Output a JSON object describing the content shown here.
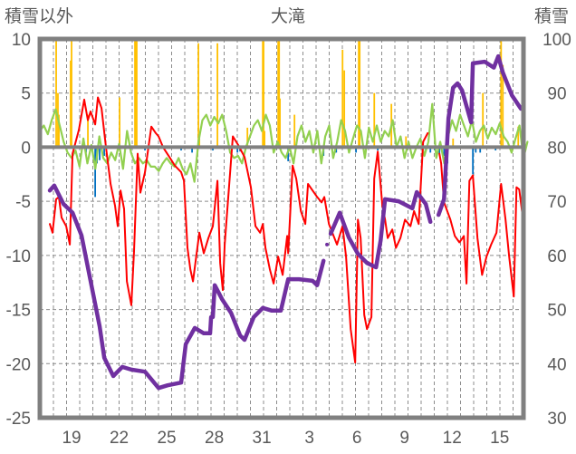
{
  "chart_data": {
    "type": "line",
    "title": "大滝",
    "ylabel_left": "積雪以外",
    "ylabel_right": "積雪",
    "x_unit": "days since the 17th (start of plot)",
    "xlim": [
      0,
      30.5
    ],
    "ylim_left": [
      -25,
      10
    ],
    "ylim_right": [
      30,
      100
    ],
    "yticks_left": [
      "10",
      "5",
      "0",
      "-5",
      "-10",
      "-15",
      "-20",
      "-25"
    ],
    "yticks_right": [
      "100",
      "90",
      "80",
      "70",
      "60",
      "50",
      "40",
      "30"
    ],
    "xticks": [
      {
        "x": 2,
        "label": "19"
      },
      {
        "x": 5,
        "label": "22"
      },
      {
        "x": 8,
        "label": "25"
      },
      {
        "x": 11,
        "label": "28"
      },
      {
        "x": 14,
        "label": "31"
      },
      {
        "x": 17,
        "label": "3"
      },
      {
        "x": 20,
        "label": "6"
      },
      {
        "x": 23,
        "label": "9"
      },
      {
        "x": 26,
        "label": "12"
      },
      {
        "x": 29,
        "label": "15"
      }
    ],
    "grid": true,
    "colors": {
      "red": "#FF0000",
      "green": "#92D050",
      "orange": "#FFC000",
      "blue": "#0070C0",
      "purple": "#7030A0",
      "frame": "#808080"
    },
    "series": [
      {
        "name": "red",
        "axis": "left",
        "color": "#FF0000",
        "points": [
          [
            0.63,
            -7.1
          ],
          [
            0.8,
            -7.9
          ],
          [
            1.03,
            -4.8
          ],
          [
            1.2,
            -4.6
          ],
          [
            1.37,
            -6.5
          ],
          [
            1.66,
            -7.3
          ],
          [
            1.89,
            -9.0
          ],
          [
            2.06,
            -0.6
          ],
          [
            2.46,
            1.6
          ],
          [
            2.8,
            4.4
          ],
          [
            3.03,
            2.5
          ],
          [
            3.2,
            3.3
          ],
          [
            3.49,
            2.1
          ],
          [
            3.66,
            4.6
          ],
          [
            3.89,
            3.6
          ],
          [
            4.17,
            0.0
          ],
          [
            4.46,
            -3.4
          ],
          [
            4.74,
            -5.4
          ],
          [
            4.91,
            -7.3
          ],
          [
            5.09,
            -4.0
          ],
          [
            5.31,
            -5.7
          ],
          [
            5.49,
            -12.4
          ],
          [
            5.77,
            -14.6
          ],
          [
            5.94,
            -9.6
          ],
          [
            6.17,
            -0.6
          ],
          [
            6.34,
            -4.2
          ],
          [
            6.63,
            -2.3
          ],
          [
            7.03,
            1.9
          ],
          [
            7.31,
            1.3
          ],
          [
            7.49,
            1.0
          ],
          [
            7.77,
            0.0
          ],
          [
            8.17,
            -0.9
          ],
          [
            8.51,
            -1.7
          ],
          [
            8.91,
            -2.3
          ],
          [
            9.09,
            -3.1
          ],
          [
            9.31,
            -9.3
          ],
          [
            9.49,
            -11.3
          ],
          [
            9.66,
            -12.4
          ],
          [
            10.06,
            -7.9
          ],
          [
            10.34,
            -9.8
          ],
          [
            10.63,
            -8.4
          ],
          [
            10.91,
            -7.3
          ],
          [
            11.2,
            -3.1
          ],
          [
            11.37,
            -10.7
          ],
          [
            11.54,
            -13.2
          ],
          [
            11.66,
            -9.0
          ],
          [
            12.17,
            1.0
          ],
          [
            12.51,
            0.2
          ],
          [
            12.91,
            -0.9
          ],
          [
            13.31,
            -3.7
          ],
          [
            13.6,
            -7.3
          ],
          [
            13.89,
            -7.9
          ],
          [
            14.06,
            -7.1
          ],
          [
            14.23,
            -9.3
          ],
          [
            14.51,
            -11.3
          ],
          [
            14.74,
            -12.6
          ],
          [
            15.03,
            -10.1
          ],
          [
            15.31,
            -11.8
          ],
          [
            15.6,
            -8.2
          ],
          [
            15.66,
            -9.8
          ],
          [
            15.94,
            -1.7
          ],
          [
            16.17,
            -2.9
          ],
          [
            16.46,
            -5.9
          ],
          [
            16.74,
            -7.1
          ],
          [
            16.91,
            -3.4
          ],
          [
            17.49,
            -4.6
          ],
          [
            17.77,
            -5.1
          ],
          [
            17.94,
            -4.6
          ],
          [
            18.23,
            -7.1
          ],
          [
            18.74,
            -9.0
          ],
          [
            19.09,
            -7.3
          ],
          [
            19.31,
            -10.1
          ],
          [
            19.6,
            -16.8
          ],
          [
            19.89,
            -19.9
          ],
          [
            20.06,
            -6.7
          ],
          [
            20.23,
            -8.4
          ],
          [
            20.46,
            -15.5
          ],
          [
            20.63,
            -16.8
          ],
          [
            20.91,
            -15.7
          ],
          [
            21.09,
            -2.9
          ],
          [
            21.31,
            -0.4
          ],
          [
            21.6,
            -5.4
          ],
          [
            21.77,
            -6.7
          ],
          [
            21.94,
            -8.4
          ],
          [
            22.23,
            -7.6
          ],
          [
            22.46,
            -9.3
          ],
          [
            22.74,
            -8.4
          ],
          [
            23.03,
            -6.7
          ],
          [
            23.37,
            -7.3
          ],
          [
            23.6,
            -5.9
          ],
          [
            23.89,
            -7.1
          ],
          [
            24.17,
            0.5
          ],
          [
            24.46,
            1.3
          ],
          null,
          [
            25.2,
            -0.6
          ],
          [
            25.31,
            -1.5
          ],
          [
            25.49,
            -5.1
          ],
          [
            25.89,
            -6.7
          ],
          [
            26.17,
            -8.2
          ],
          [
            26.46,
            -8.8
          ],
          [
            26.74,
            -8.2
          ],
          [
            26.91,
            -12.6
          ],
          [
            27.09,
            -3.1
          ],
          [
            27.31,
            -2.6
          ],
          [
            27.6,
            -8.4
          ],
          [
            27.89,
            -11.8
          ],
          [
            28.17,
            -10.1
          ],
          [
            28.46,
            -9.0
          ],
          [
            28.8,
            -7.9
          ],
          [
            29.09,
            -3.4
          ],
          [
            29.37,
            -6.7
          ],
          [
            29.6,
            -10.1
          ],
          [
            29.89,
            -13.8
          ],
          [
            30.06,
            -3.7
          ],
          [
            30.23,
            -3.9
          ],
          [
            30.51,
            -7.1
          ]
        ]
      },
      {
        "name": "green",
        "axis": "left",
        "color": "#92D050",
        "x_start": 0,
        "x_step": 0.25,
        "values": [
          1.5,
          2.0,
          1.2,
          2.5,
          3.5,
          2.0,
          0.5,
          -0.5,
          -1.0,
          -0.3,
          -1.8,
          0.8,
          -1.5,
          0.2,
          -2.0,
          1.0,
          -1.0,
          -1.5,
          -0.5,
          -1.2,
          0.3,
          -2.0,
          1.5,
          -0.5,
          -1.5,
          -1.0,
          -1.5,
          -1.2,
          -1.8,
          -1.8,
          -2.2,
          -1.5,
          -1.0,
          -1.5,
          -1.8,
          -1.0,
          -2.0,
          -2.5,
          -1.5,
          -3.2,
          0.5,
          2.5,
          3.0,
          2.0,
          2.8,
          2.2,
          3.0,
          1.5,
          -0.5,
          -1.0,
          -0.8,
          -1.5,
          0.0,
          1.0,
          2.0,
          2.5,
          1.5,
          3.0,
          2.0,
          -0.5,
          0.5,
          -0.5,
          -1.0,
          0.0,
          -1.5,
          1.0,
          2.0,
          0.5,
          1.5,
          -0.5,
          1.5,
          -1.5,
          1.0,
          2.0,
          -1.0,
          0.5,
          2.5,
          1.5,
          -0.5,
          0.8,
          2.0,
          1.5,
          -1.0,
          1.8,
          0.5,
          2.0,
          0.5,
          1.5,
          1.0,
          2.5,
          0.0,
          1.0,
          -1.0,
          0.5,
          -1.0,
          0.0,
          0.8,
          -0.8,
          0.5,
          4.0,
          -1.0,
          0.5,
          -1.5,
          1.0,
          2.5,
          1.5,
          3.0,
          2.0,
          1.0,
          2.5,
          0.5,
          1.5,
          2.0,
          0.8,
          1.8,
          1.2,
          2.2,
          1.0,
          0.5,
          -0.5,
          0.8,
          2.0,
          -1.0,
          0.5
        ]
      },
      {
        "name": "orange",
        "axis": "left",
        "type": "bar",
        "color": "#FFC000",
        "points": [
          [
            1.03,
            10
          ],
          [
            1.14,
            5.0
          ],
          [
            1.2,
            3.0
          ],
          [
            1.94,
            8.0
          ],
          [
            2.0,
            10
          ],
          [
            3.03,
            3.0
          ],
          [
            5.03,
            4.6
          ],
          [
            6.0,
            10
          ],
          [
            6.06,
            10
          ],
          [
            6.11,
            10
          ],
          [
            10.0,
            9.6
          ],
          [
            10.06,
            1.0
          ],
          [
            11.2,
            9.6
          ],
          [
            13.09,
            1.8
          ],
          [
            14.06,
            10
          ],
          [
            14.11,
            10
          ],
          [
            14.17,
            1.5
          ],
          [
            15.03,
            10
          ],
          [
            15.09,
            10
          ],
          [
            15.14,
            4.5
          ],
          [
            16.06,
            3.0
          ],
          [
            19.09,
            9.0
          ],
          [
            19.2,
            7.1
          ],
          [
            20.11,
            10
          ],
          [
            20.17,
            10
          ],
          [
            21.09,
            5.0
          ],
          [
            22.17,
            4.0
          ],
          [
            23.09,
            1.0
          ],
          [
            26.06,
            0.8
          ],
          [
            27.94,
            5.0
          ],
          [
            29.09,
            10
          ],
          [
            29.2,
            7.6
          ],
          [
            30.17,
            1.9
          ]
        ]
      },
      {
        "name": "blue",
        "axis": "left",
        "type": "bar",
        "color": "#0070C0",
        "points": [
          [
            2.91,
            -0.5
          ],
          [
            3.49,
            -4.6
          ],
          [
            3.6,
            -1.5
          ],
          [
            3.77,
            -1.2
          ],
          [
            4.06,
            -0.8
          ],
          [
            6.63,
            -0.3
          ],
          [
            8.91,
            -0.3
          ],
          [
            9.6,
            -0.5
          ],
          [
            10.91,
            -0.3
          ],
          [
            12.46,
            -0.5
          ],
          [
            12.63,
            -0.4
          ],
          [
            15.66,
            -1.3
          ],
          [
            17.89,
            -0.8
          ],
          [
            18.69,
            -0.5
          ],
          [
            19.94,
            -0.5
          ],
          [
            21.31,
            -0.3
          ],
          [
            24.34,
            -0.4
          ],
          [
            24.63,
            -0.5
          ],
          [
            24.91,
            -0.3
          ],
          [
            25.2,
            -0.6
          ],
          [
            25.49,
            -0.8
          ],
          [
            25.71,
            -1.5
          ],
          [
            27.31,
            -2.5
          ],
          [
            27.49,
            -0.5
          ],
          [
            27.77,
            -0.5
          ],
          [
            28.74,
            -0.3
          ]
        ]
      },
      {
        "name": "purple",
        "axis": "right",
        "color": "#7030A0",
        "points": [
          [
            0.63,
            72.0
          ],
          [
            0.91,
            72.9
          ],
          [
            1.49,
            69.5
          ],
          [
            2.06,
            67.9
          ],
          [
            2.63,
            63.7
          ],
          [
            3.2,
            55.3
          ],
          [
            3.77,
            46.9
          ],
          [
            4.06,
            41.1
          ],
          [
            4.63,
            37.7
          ],
          [
            5.2,
            39.4
          ],
          [
            5.77,
            38.9
          ],
          [
            6.63,
            38.5
          ],
          [
            7.49,
            35.5
          ],
          [
            8.06,
            36.0
          ],
          [
            8.91,
            36.5
          ],
          [
            9.2,
            43.6
          ],
          [
            9.77,
            46.6
          ],
          [
            10.34,
            45.6
          ],
          [
            10.74,
            45.6
          ],
          [
            10.8,
            48.6
          ],
          null,
          [
            10.91,
            48.6
          ],
          [
            11.03,
            54.5
          ],
          [
            11.49,
            51.9
          ],
          [
            12.06,
            49.4
          ],
          [
            12.63,
            45.2
          ],
          [
            12.91,
            44.4
          ],
          [
            13.49,
            48.6
          ],
          [
            14.06,
            50.3
          ],
          [
            14.63,
            49.8
          ],
          [
            15.2,
            49.8
          ],
          [
            15.66,
            55.6
          ],
          [
            16.34,
            55.6
          ],
          [
            17.2,
            55.3
          ],
          [
            17.49,
            54.5
          ],
          [
            17.89,
            59.0
          ],
          null,
          [
            18.11,
            62.0
          ],
          null,
          [
            18.34,
            64.0
          ],
          [
            18.91,
            67.9
          ],
          [
            19.49,
            63.3
          ],
          [
            20.06,
            60.3
          ],
          [
            20.63,
            58.6
          ],
          [
            21.2,
            57.8
          ],
          [
            21.49,
            62.8
          ],
          [
            21.77,
            70.4
          ],
          [
            22.63,
            70.0
          ],
          [
            23.49,
            68.7
          ],
          [
            23.77,
            71.7
          ],
          [
            24.34,
            69.5
          ],
          [
            24.63,
            66.2
          ],
          null,
          [
            25.14,
            67.5
          ],
          [
            25.49,
            70.4
          ],
          [
            25.77,
            85.4
          ],
          [
            26.06,
            91.0
          ],
          [
            26.34,
            91.8
          ],
          [
            26.63,
            90.5
          ],
          [
            27.2,
            84.6
          ],
          [
            27.31,
            95.5
          ],
          [
            28.06,
            95.8
          ],
          [
            28.63,
            94.7
          ],
          [
            28.91,
            96.8
          ],
          [
            29.2,
            93.8
          ],
          [
            29.77,
            89.6
          ],
          [
            30.34,
            87.1
          ]
        ]
      }
    ]
  }
}
